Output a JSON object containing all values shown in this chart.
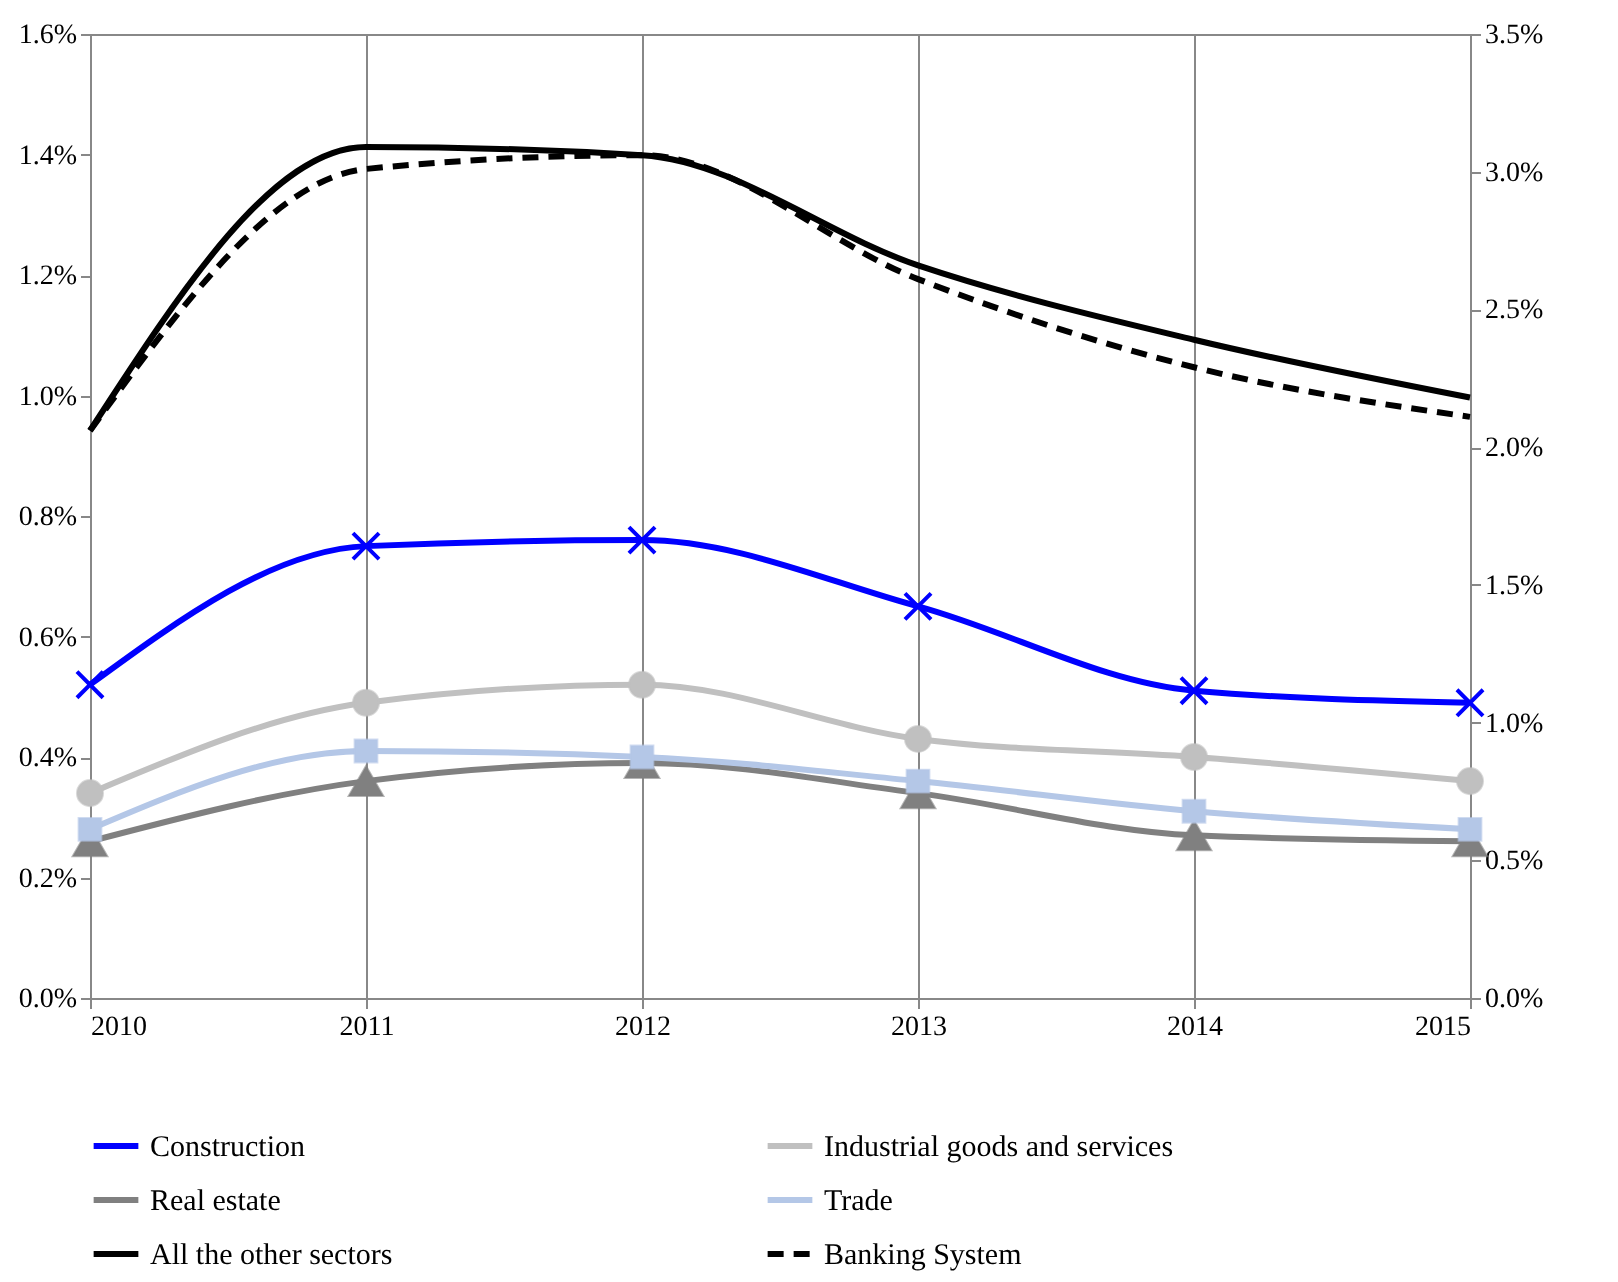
{
  "chart_data": {
    "type": "line",
    "x": [
      2010,
      2011,
      2012,
      2013,
      2014,
      2015
    ],
    "xlim": [
      2010,
      2015
    ],
    "xticks": [
      2010,
      2011,
      2012,
      2013,
      2014,
      2015
    ],
    "ylim": [
      0,
      1.6
    ],
    "yticks": [
      {
        "value": 0,
        "label": "0.0%"
      },
      {
        "value": 0.2,
        "label": "0.2%"
      },
      {
        "value": 0.4,
        "label": "0.4%"
      },
      {
        "value": 0.6,
        "label": "0.6%"
      },
      {
        "value": 0.8,
        "label": "0.8%"
      },
      {
        "value": 1,
        "label": "1.0%"
      },
      {
        "value": 1.2,
        "label": "1.2%"
      },
      {
        "value": 1.4,
        "label": "1.4%"
      },
      {
        "value": 1.6,
        "label": "1.6%"
      }
    ],
    "y2lim": [
      0,
      3.5
    ],
    "y2ticks": [
      {
        "value": 0,
        "label": "0.0%"
      },
      {
        "value": 0.5,
        "label": "0.5%"
      },
      {
        "value": 1,
        "label": "1.0%"
      },
      {
        "value": 1.5,
        "label": "1.5%"
      },
      {
        "value": 2,
        "label": "2.0%"
      },
      {
        "value": 2.5,
        "label": "2.5%"
      },
      {
        "value": 3,
        "label": "3.0%"
      },
      {
        "value": 3.5,
        "label": "3.5%"
      }
    ],
    "grid": "x",
    "legend": "bottom",
    "series": [
      {
        "name": "Construction",
        "color": "#0000ff",
        "marker": "cross",
        "values": [
          0.52,
          0.75,
          0.76,
          0.65,
          0.51,
          0.49
        ]
      },
      {
        "name": "Industrial goods and services",
        "color": "#c0c0c0",
        "marker": "circle",
        "values": [
          0.34,
          0.49,
          0.52,
          0.43,
          0.4,
          0.36
        ]
      },
      {
        "name": "Real estate",
        "color": "#808080",
        "marker": "triangle",
        "values": [
          0.26,
          0.36,
          0.39,
          0.34,
          0.27,
          0.26
        ]
      },
      {
        "name": "Trade",
        "color": "#b4c7e7",
        "marker": "square",
        "values": [
          0.28,
          0.41,
          0.4,
          0.36,
          0.31,
          0.28
        ]
      },
      {
        "name": "All the other sectors",
        "color": "#000000",
        "marker": "none",
        "axis": "y2",
        "values": [
          2.06,
          3.09,
          3.06,
          2.66,
          2.39,
          2.18
        ]
      },
      {
        "name": "Banking System",
        "color": "#000000",
        "marker": "none",
        "line_style": "dashed",
        "axis": "y2",
        "values": [
          2.06,
          3.01,
          3.06,
          2.61,
          2.29,
          2.11
        ]
      }
    ]
  }
}
